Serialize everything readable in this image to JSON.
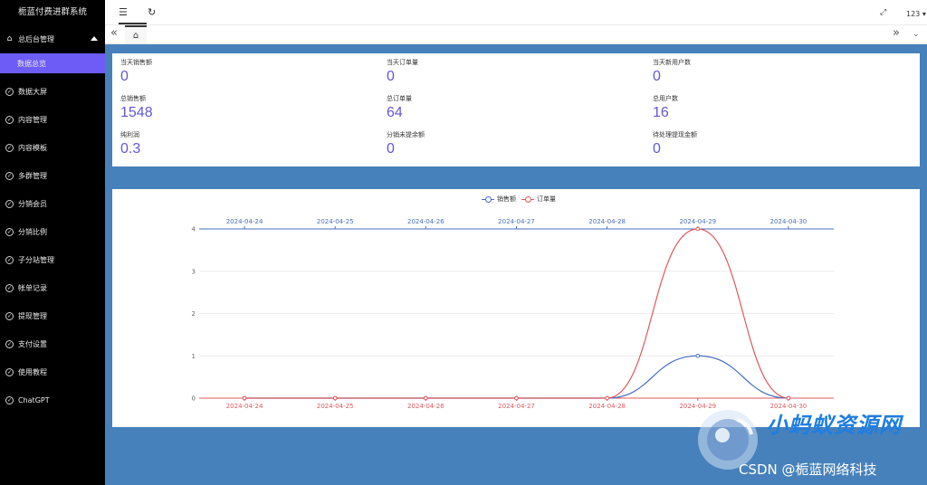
{
  "app": {
    "title": "栀蓝付费进群系统"
  },
  "sidebar": {
    "parent": {
      "label": "总后台管理",
      "icon": "home-icon"
    },
    "active_item": {
      "label": "数据总览"
    },
    "items": [
      {
        "label": "数据大屏",
        "icon": "shield-check-icon"
      },
      {
        "label": "内容管理",
        "icon": "shield-check-icon"
      },
      {
        "label": "内容模板",
        "icon": "shield-check-icon"
      },
      {
        "label": "多群管理",
        "icon": "shield-check-icon"
      },
      {
        "label": "分销会员",
        "icon": "shield-check-icon"
      },
      {
        "label": "分销比例",
        "icon": "shield-check-icon"
      },
      {
        "label": "子分站管理",
        "icon": "shield-check-icon"
      },
      {
        "label": "帐单记录",
        "icon": "shield-check-icon"
      },
      {
        "label": "提现管理",
        "icon": "shield-check-icon"
      },
      {
        "label": "支付设置",
        "icon": "shield-check-icon"
      },
      {
        "label": "使用教程",
        "icon": "shield-check-icon"
      },
      {
        "label": "ChatGPT",
        "icon": "shield-check-icon"
      }
    ]
  },
  "topbar": {
    "menu_icon": "indent-icon",
    "refresh_icon": "refresh-icon",
    "fullscreen_icon": "fullscreen-icon",
    "user": "123"
  },
  "tabs": {
    "home_icon": "home-icon"
  },
  "stats": [
    {
      "label": "当天销售额",
      "value": "0"
    },
    {
      "label": "当天订单量",
      "value": "0"
    },
    {
      "label": "当天新用户数",
      "value": "0"
    },
    {
      "label": "总销售额",
      "value": "1548"
    },
    {
      "label": "总订单量",
      "value": "64"
    },
    {
      "label": "总用户数",
      "value": "16"
    },
    {
      "label": "纯利润",
      "value": "0.3"
    },
    {
      "label": "分销未提余额",
      "value": "0"
    },
    {
      "label": "待处理提现金额",
      "value": "0"
    }
  ],
  "colors": {
    "sales": "#4a6fc2",
    "orders": "#e0595e",
    "accent": "#6d5cf6",
    "value": "#6257d8",
    "background": "#4781bb"
  },
  "chart_data": {
    "type": "line",
    "categories": [
      "2024-04-24",
      "2024-04-25",
      "2024-04-26",
      "2024-04-27",
      "2024-04-28",
      "2024-04-29",
      "2024-04-30"
    ],
    "series": [
      {
        "name": "销售额",
        "values": [
          0,
          0,
          0,
          0,
          0,
          1,
          0
        ]
      },
      {
        "name": "订单量",
        "values": [
          0,
          0,
          0,
          0,
          0,
          4,
          0
        ]
      }
    ],
    "y_ticks": [
      "0",
      "1",
      "2",
      "3",
      "4"
    ],
    "ylim": [
      0,
      4
    ],
    "smooth": true,
    "legend": "top-center",
    "grid": true
  },
  "watermark": {
    "brand": "小蚂蚁资源网",
    "credit": "CSDN @栀蓝网络科技"
  }
}
